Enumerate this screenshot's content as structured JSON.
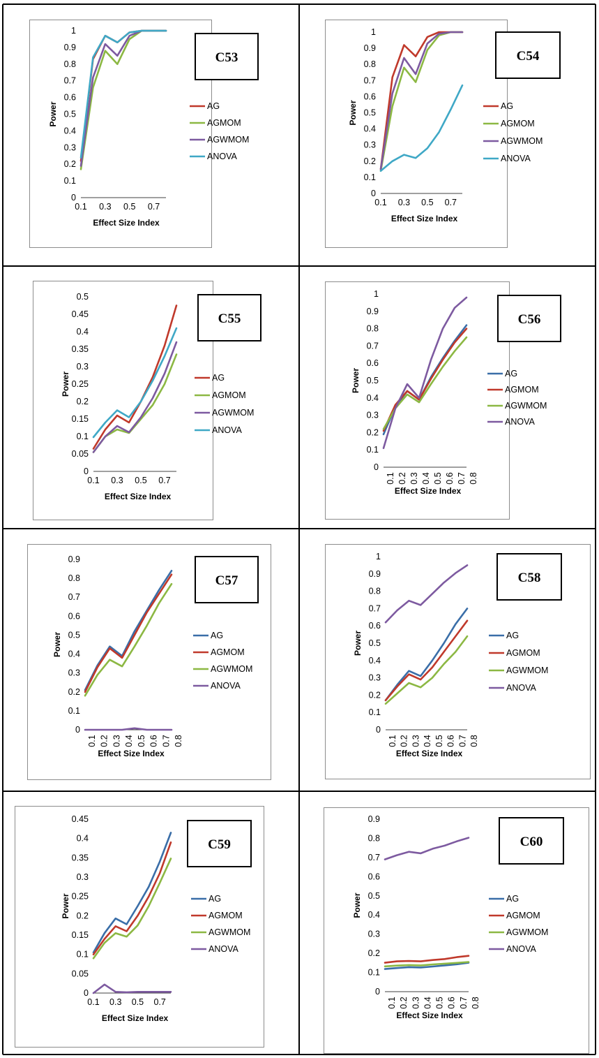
{
  "colors": {
    "AG_red": "#c0392b",
    "AG_blue": "#3a6ea8",
    "AGMOM_green": "#8cb843",
    "AGMOM_red": "#c0392b",
    "AGWMOM_purple": "#7d5aa0",
    "AGWMOM_green": "#8cb843",
    "ANOVA_teal": "#3fa8c6",
    "ANOVA_purple": "#7d5aa0"
  },
  "chart_data": [
    {
      "id": "C53",
      "type": "line",
      "badge": "C53",
      "xlabel": "Effect Size Index",
      "ylabel": "Power",
      "ylim": [
        0,
        1
      ],
      "y_ticks": [
        "0",
        "0.1",
        "0.2",
        "0.3",
        "0.4",
        "0.5",
        "0.6",
        "0.7",
        "0.8",
        "0.9",
        "1"
      ],
      "x_ticks": [
        "0.1",
        "0.3",
        "0.5",
        "0.7"
      ],
      "x": [
        0.1,
        0.2,
        0.3,
        0.4,
        0.5,
        0.6,
        0.7,
        0.8
      ],
      "legend": "right",
      "series": [
        {
          "name": "AG",
          "color": "#c0392b",
          "values": [
            0.22,
            0.83,
            0.97,
            0.93,
            0.99,
            1.0,
            1.0,
            1.0
          ]
        },
        {
          "name": "AGMOM",
          "color": "#8cb843",
          "values": [
            0.17,
            0.66,
            0.88,
            0.8,
            0.95,
            1.0,
            1.0,
            1.0
          ]
        },
        {
          "name": "AGWMOM",
          "color": "#7d5aa0",
          "values": [
            0.19,
            0.72,
            0.92,
            0.85,
            0.97,
            1.0,
            1.0,
            1.0
          ]
        },
        {
          "name": "ANOVA",
          "color": "#3fa8c6",
          "values": [
            0.24,
            0.84,
            0.97,
            0.93,
            0.99,
            1.0,
            1.0,
            1.0
          ]
        }
      ]
    },
    {
      "id": "C54",
      "type": "line",
      "badge": "C54",
      "xlabel": "Effect Size Index",
      "ylabel": "Power",
      "ylim": [
        0,
        1
      ],
      "y_ticks": [
        "0",
        "0.1",
        "0.2",
        "0.3",
        "0.4",
        "0.5",
        "0.6",
        "0.7",
        "0.8",
        "0.9",
        "1"
      ],
      "x_ticks": [
        "0.1",
        "0.3",
        "0.5",
        "0.7"
      ],
      "x": [
        0.1,
        0.2,
        0.3,
        0.4,
        0.5,
        0.6,
        0.7,
        0.8
      ],
      "legend": "right",
      "series": [
        {
          "name": "AG",
          "color": "#c0392b",
          "values": [
            0.15,
            0.72,
            0.92,
            0.85,
            0.97,
            1.0,
            1.0,
            1.0
          ]
        },
        {
          "name": "AGMOM",
          "color": "#8cb843",
          "values": [
            0.14,
            0.54,
            0.78,
            0.69,
            0.89,
            0.98,
            1.0,
            1.0
          ]
        },
        {
          "name": "AGWMOM",
          "color": "#7d5aa0",
          "values": [
            0.15,
            0.62,
            0.84,
            0.74,
            0.93,
            0.99,
            1.0,
            1.0
          ]
        },
        {
          "name": "ANOVA",
          "color": "#3fa8c6",
          "values": [
            0.14,
            0.2,
            0.24,
            0.22,
            0.28,
            0.38,
            0.52,
            0.67
          ]
        }
      ]
    },
    {
      "id": "C55",
      "type": "line",
      "badge": "C55",
      "xlabel": "Effect Size Index",
      "ylabel": "Power",
      "ylim": [
        0,
        0.5
      ],
      "y_ticks": [
        "0",
        "0.05",
        "0.1",
        "0.15",
        "0.2",
        "0.25",
        "0.3",
        "0.35",
        "0.4",
        "0.45",
        "0.5"
      ],
      "x_ticks": [
        "0.1",
        "0.3",
        "0.5",
        "0.7"
      ],
      "x": [
        0.1,
        0.2,
        0.3,
        0.4,
        0.5,
        0.6,
        0.7,
        0.8
      ],
      "legend": "right",
      "series": [
        {
          "name": "AG",
          "color": "#c0392b",
          "values": [
            0.065,
            0.12,
            0.16,
            0.14,
            0.2,
            0.27,
            0.36,
            0.475
          ]
        },
        {
          "name": "AGMOM",
          "color": "#8cb843",
          "values": [
            0.055,
            0.1,
            0.12,
            0.11,
            0.15,
            0.19,
            0.25,
            0.335
          ]
        },
        {
          "name": "AGWMOM",
          "color": "#7d5aa0",
          "values": [
            0.055,
            0.1,
            0.13,
            0.112,
            0.155,
            0.21,
            0.28,
            0.37
          ]
        },
        {
          "name": "ANOVA",
          "color": "#3fa8c6",
          "values": [
            0.098,
            0.14,
            0.175,
            0.155,
            0.2,
            0.26,
            0.33,
            0.41
          ]
        }
      ]
    },
    {
      "id": "C56",
      "type": "line",
      "badge": "C56",
      "xlabel": "Effect Size Index",
      "ylabel": "Power",
      "ylim": [
        0,
        1
      ],
      "y_ticks": [
        "0",
        "0.1",
        "0.2",
        "0.3",
        "0.4",
        "0.5",
        "0.6",
        "0.7",
        "0.8",
        "0.9",
        "1"
      ],
      "x_ticks": [
        "0.1",
        "0.2",
        "0.3",
        "0.4",
        "0.5",
        "0.6",
        "0.7",
        "0.8"
      ],
      "x": [
        0.1,
        0.2,
        0.3,
        0.4,
        0.5,
        0.6,
        0.7,
        0.8
      ],
      "legend": "right",
      "series": [
        {
          "name": "AG",
          "color": "#3a6ea8",
          "values": [
            0.19,
            0.35,
            0.44,
            0.39,
            0.52,
            0.63,
            0.73,
            0.82
          ]
        },
        {
          "name": "AGMOM",
          "color": "#c0392b",
          "values": [
            0.21,
            0.36,
            0.44,
            0.39,
            0.51,
            0.62,
            0.72,
            0.8
          ]
        },
        {
          "name": "AGWMOM",
          "color": "#8cb843",
          "values": [
            0.22,
            0.34,
            0.42,
            0.375,
            0.48,
            0.58,
            0.67,
            0.75
          ]
        },
        {
          "name": "ANOVA",
          "color": "#7d5aa0",
          "values": [
            0.11,
            0.34,
            0.48,
            0.4,
            0.62,
            0.8,
            0.92,
            0.98
          ]
        }
      ]
    },
    {
      "id": "C57",
      "type": "line",
      "badge": "C57",
      "xlabel": "Effect Size Index",
      "ylabel": "Power",
      "ylim": [
        0,
        0.9
      ],
      "y_ticks": [
        "0",
        "0.1",
        "0.2",
        "0.3",
        "0.4",
        "0.5",
        "0.6",
        "0.7",
        "0.8",
        "0.9"
      ],
      "x_ticks": [
        "0.1",
        "0.2",
        "0.3",
        "0.4",
        "0.5",
        "0.6",
        "0.7",
        "0.8"
      ],
      "x": [
        0.1,
        0.2,
        0.3,
        0.4,
        0.5,
        0.6,
        0.7,
        0.8
      ],
      "legend": "right",
      "series": [
        {
          "name": "AG",
          "color": "#3a6ea8",
          "values": [
            0.21,
            0.34,
            0.44,
            0.39,
            0.52,
            0.63,
            0.74,
            0.84
          ]
        },
        {
          "name": "AGMOM",
          "color": "#c0392b",
          "values": [
            0.2,
            0.33,
            0.43,
            0.38,
            0.5,
            0.62,
            0.72,
            0.82
          ]
        },
        {
          "name": "AGWMOM",
          "color": "#8cb843",
          "values": [
            0.18,
            0.29,
            0.37,
            0.335,
            0.44,
            0.55,
            0.67,
            0.77
          ]
        },
        {
          "name": "ANOVA",
          "color": "#7d5aa0",
          "values": [
            0.0,
            0.0,
            0.0,
            0.0,
            0.008,
            0.0,
            0.0,
            0.0
          ]
        }
      ]
    },
    {
      "id": "C58",
      "type": "line",
      "badge": "C58",
      "xlabel": "Effect Size Index",
      "ylabel": "Power",
      "ylim": [
        0,
        1
      ],
      "y_ticks": [
        "0",
        "0.1",
        "0.2",
        "0.3",
        "0.4",
        "0.5",
        "0.6",
        "0.7",
        "0.8",
        "0.9",
        "1"
      ],
      "x_ticks": [
        "0.1",
        "0.2",
        "0.3",
        "0.4",
        "0.5",
        "0.6",
        "0.7",
        "0.8"
      ],
      "x": [
        0.1,
        0.2,
        0.3,
        0.4,
        0.5,
        0.6,
        0.7,
        0.8
      ],
      "legend": "right",
      "series": [
        {
          "name": "AG",
          "color": "#3a6ea8",
          "values": [
            0.17,
            0.26,
            0.34,
            0.31,
            0.4,
            0.5,
            0.61,
            0.7
          ]
        },
        {
          "name": "AGMOM",
          "color": "#c0392b",
          "values": [
            0.17,
            0.25,
            0.32,
            0.29,
            0.36,
            0.45,
            0.54,
            0.63
          ]
        },
        {
          "name": "AGWMOM",
          "color": "#8cb843",
          "values": [
            0.15,
            0.21,
            0.27,
            0.245,
            0.3,
            0.38,
            0.45,
            0.54
          ]
        },
        {
          "name": "ANOVA",
          "color": "#7d5aa0",
          "values": [
            0.62,
            0.69,
            0.745,
            0.72,
            0.785,
            0.85,
            0.905,
            0.95
          ]
        }
      ]
    },
    {
      "id": "C59",
      "type": "line",
      "badge": "C59",
      "xlabel": "Effect Size Index",
      "ylabel": "Power",
      "ylim": [
        0,
        0.45
      ],
      "y_ticks": [
        "0",
        "0.05",
        "0.1",
        "0.15",
        "0.2",
        "0.25",
        "0.3",
        "0.35",
        "0.4",
        "0.45"
      ],
      "x_ticks": [
        "0.1",
        "0.3",
        "0.5",
        "0.7"
      ],
      "x": [
        0.1,
        0.2,
        0.3,
        0.4,
        0.5,
        0.6,
        0.7,
        0.8
      ],
      "legend": "right",
      "series": [
        {
          "name": "AG",
          "color": "#3a6ea8",
          "values": [
            0.105,
            0.155,
            0.193,
            0.178,
            0.225,
            0.275,
            0.34,
            0.415
          ]
        },
        {
          "name": "AGMOM",
          "color": "#c0392b",
          "values": [
            0.1,
            0.14,
            0.173,
            0.16,
            0.2,
            0.25,
            0.31,
            0.39
          ]
        },
        {
          "name": "AGWMOM",
          "color": "#8cb843",
          "values": [
            0.09,
            0.13,
            0.155,
            0.146,
            0.175,
            0.225,
            0.285,
            0.348
          ]
        },
        {
          "name": "ANOVA",
          "color": "#7d5aa0",
          "values": [
            0.0,
            0.022,
            0.003,
            0.002,
            0.003,
            0.003,
            0.003,
            0.003
          ]
        }
      ]
    },
    {
      "id": "C60",
      "type": "line",
      "badge": "C60",
      "xlabel": "Effect Size Index",
      "ylabel": "Power",
      "ylim": [
        0,
        0.9
      ],
      "y_ticks": [
        "0",
        "0.1",
        "0.2",
        "0.3",
        "0.4",
        "0.5",
        "0.6",
        "0.7",
        "0.8",
        "0.9"
      ],
      "x_ticks": [
        "0.1",
        "0.2",
        "0.3",
        "0.4",
        "0.5",
        "0.6",
        "0.7",
        "0.8"
      ],
      "x": [
        0.1,
        0.2,
        0.3,
        0.4,
        0.5,
        0.6,
        0.7,
        0.8
      ],
      "legend": "right",
      "series": [
        {
          "name": "AG",
          "color": "#3a6ea8",
          "values": [
            0.118,
            0.123,
            0.128,
            0.126,
            0.131,
            0.137,
            0.143,
            0.151
          ]
        },
        {
          "name": "AGMOM",
          "color": "#c0392b",
          "values": [
            0.151,
            0.158,
            0.16,
            0.158,
            0.165,
            0.17,
            0.18,
            0.187
          ]
        },
        {
          "name": "AGWMOM",
          "color": "#8cb843",
          "values": [
            0.132,
            0.136,
            0.139,
            0.137,
            0.142,
            0.146,
            0.15,
            0.155
          ]
        },
        {
          "name": "ANOVA",
          "color": "#7d5aa0",
          "values": [
            0.69,
            0.712,
            0.73,
            0.722,
            0.746,
            0.762,
            0.784,
            0.803
          ]
        }
      ]
    }
  ]
}
